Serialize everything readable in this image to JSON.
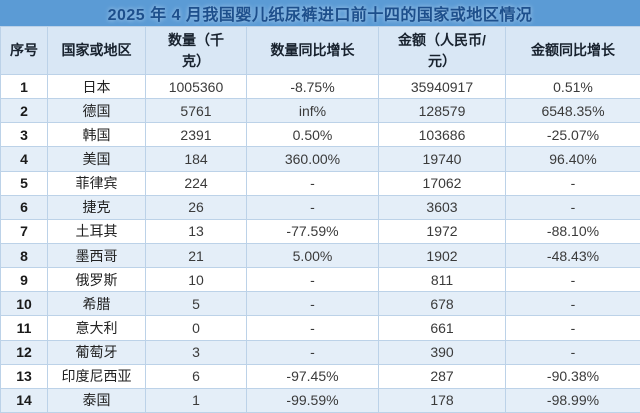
{
  "title": "2025 年 4 月我国婴儿纸尿裤进口前十四的国家或地区情况",
  "chart_data": {
    "type": "table",
    "title": "2025 年 4 月我国婴儿纸尿裤进口前十四的国家或地区情况",
    "columns": [
      "序号",
      "国家或地区",
      "数量（千克）",
      "数量同比增长",
      "金额（人民币/元）",
      "金额同比增长"
    ],
    "rows": [
      [
        "1",
        "日本",
        "1005360",
        "-8.75%",
        "35940917",
        "0.51%"
      ],
      [
        "2",
        "德国",
        "5761",
        "inf%",
        "128579",
        "6548.35%"
      ],
      [
        "3",
        "韩国",
        "2391",
        "0.50%",
        "103686",
        "-25.07%"
      ],
      [
        "4",
        "美国",
        "184",
        "360.00%",
        "19740",
        "96.40%"
      ],
      [
        "5",
        "菲律宾",
        "224",
        "-",
        "17062",
        "-"
      ],
      [
        "6",
        "捷克",
        "26",
        "-",
        "3603",
        "-"
      ],
      [
        "7",
        "土耳其",
        "13",
        "-77.59%",
        "1972",
        "-88.10%"
      ],
      [
        "8",
        "墨西哥",
        "21",
        "5.00%",
        "1902",
        "-48.43%"
      ],
      [
        "9",
        "俄罗斯",
        "10",
        "-",
        "811",
        "-"
      ],
      [
        "10",
        "希腊",
        "5",
        "-",
        "678",
        "-"
      ],
      [
        "11",
        "意大利",
        "0",
        "-",
        "661",
        "-"
      ],
      [
        "12",
        "葡萄牙",
        "3",
        "-",
        "390",
        "-"
      ],
      [
        "13",
        "印度尼西亚",
        "6",
        "-97.45%",
        "287",
        "-90.38%"
      ],
      [
        "14",
        "泰国",
        "1",
        "-99.59%",
        "178",
        "-98.99%"
      ]
    ]
  },
  "colors": {
    "title_bg": "#5B9BD5",
    "title_text": "#1D4F8C",
    "header_bg": "#D9E7F5",
    "row_bg": "#FFFFFF",
    "row_alt_bg": "#E4EEF8",
    "border": "#BCD2E8",
    "text": "#3A3A3A"
  }
}
